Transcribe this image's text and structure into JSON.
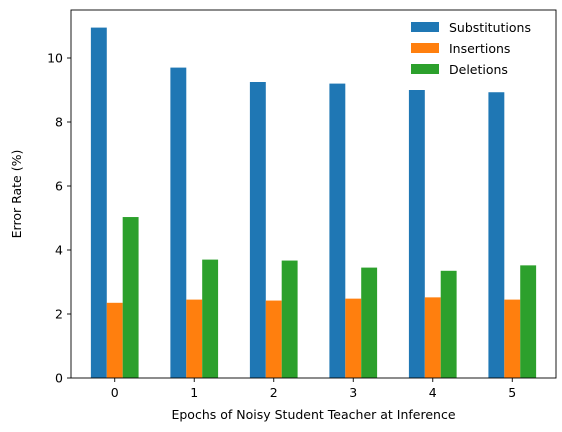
{
  "chart_data": {
    "type": "bar",
    "title": "",
    "xlabel": "Epochs of Noisy Student Teacher at Inference",
    "ylabel": "Error Rate (%)",
    "categories": [
      "0",
      "1",
      "2",
      "3",
      "4",
      "5"
    ],
    "ylim": [
      0,
      11.5
    ],
    "yticks": [
      0,
      2,
      4,
      6,
      8,
      10
    ],
    "grid": false,
    "legend_position": "top-right",
    "series": [
      {
        "name": "Substitutions",
        "color": "#1f77b4",
        "values": [
          10.95,
          9.7,
          9.25,
          9.2,
          9.0,
          8.93
        ]
      },
      {
        "name": "Insertions",
        "color": "#ff7f0e",
        "values": [
          2.35,
          2.45,
          2.42,
          2.48,
          2.52,
          2.45
        ]
      },
      {
        "name": "Deletions",
        "color": "#2ca02c",
        "values": [
          5.03,
          3.7,
          3.67,
          3.45,
          3.35,
          3.52
        ]
      }
    ]
  }
}
